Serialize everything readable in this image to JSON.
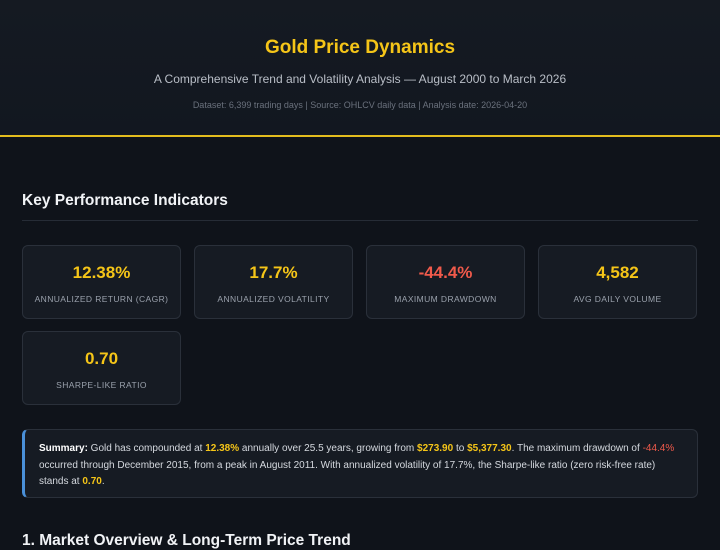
{
  "header": {
    "title": "Gold Price Dynamics",
    "subtitle": "A Comprehensive Trend and Volatility Analysis — August 2000 to March 2026",
    "meta": "Dataset: 6,399 trading days  |  Source: OHLCV daily data  |  Analysis date: 2026-04-20"
  },
  "kpi_section": {
    "title": "Key Performance Indicators"
  },
  "kpis": [
    {
      "value": "12.38%",
      "label": "ANNUALIZED RETURN (CAGR)",
      "tone": "positive"
    },
    {
      "value": "17.7%",
      "label": "ANNUALIZED VOLATILITY",
      "tone": "positive"
    },
    {
      "value": "-44.4%",
      "label": "MAXIMUM DRAWDOWN",
      "tone": "negative"
    },
    {
      "value": "4,582",
      "label": "AVG DAILY VOLUME",
      "tone": "positive"
    },
    {
      "value": "0.70",
      "label": "SHARPE-LIKE RATIO",
      "tone": "positive"
    }
  ],
  "summary": {
    "lead": "Summary:",
    "t1": " Gold has compounded at ",
    "cagr": "12.38%",
    "t2": " annually over 25.5 years, growing from ",
    "start_price": "$273.90",
    "t3": " to ",
    "end_price": "$5,377.30",
    "t4": ". The maximum drawdown of ",
    "drawdown": "-44.4%",
    "t5": " occurred through December 2015, from a peak in August 2011. With annualized volatility of 17.7%, the Sharpe-like ratio (zero risk-free rate) stands at ",
    "sharpe": "0.70",
    "t6": "."
  },
  "next_section": {
    "title": "1. Market Overview & Long-Term Price Trend"
  },
  "colors": {
    "accent": "#f5c518",
    "negative": "#f05a4b",
    "info_border": "#4a90d9",
    "background": "#0f131a"
  }
}
